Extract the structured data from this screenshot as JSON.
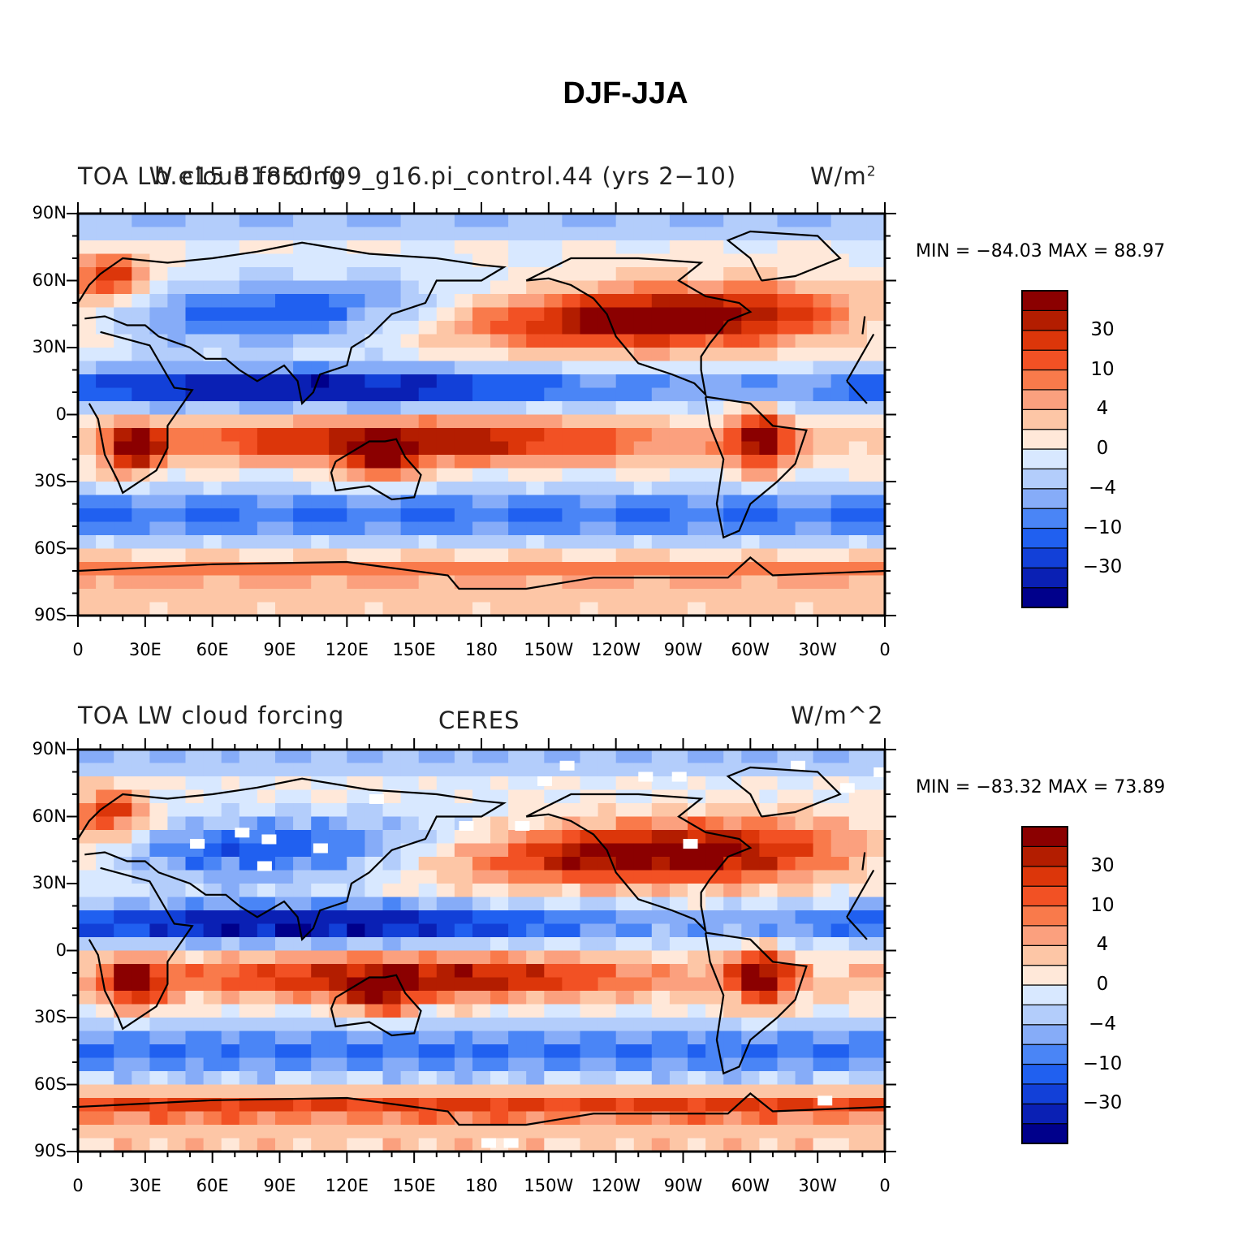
{
  "title": "DJF-JJA",
  "colors": [
    "#00008b",
    "#0a20b4",
    "#1240d8",
    "#2060f0",
    "#4a85f6",
    "#86acf8",
    "#b3cdfb",
    "#d8e8ff",
    "#ffe8d9",
    "#fdc6a6",
    "#fba07e",
    "#f97a4b",
    "#f25124",
    "#dc360a",
    "#b31d00",
    "#8b0000"
  ],
  "colorbar": {
    "labels": [
      "30",
      "10",
      "4",
      "0",
      "−4",
      "−10",
      "−30"
    ]
  },
  "axes": {
    "lat_labels": [
      "90N",
      "60N",
      "30N",
      "0",
      "30S",
      "60S",
      "90S"
    ],
    "lon_labels": [
      "0",
      "30E",
      "60E",
      "90E",
      "120E",
      "150E",
      "180",
      "150W",
      "120W",
      "90W",
      "60W",
      "30W",
      "0"
    ]
  },
  "panels": [
    {
      "left_label": "TOA LW cloud forcing",
      "center_label": "b.e15.B1850.f09_g16.pi_control.44 (yrs 2−10)",
      "right_label": "W/m",
      "right_label_sup": "2",
      "minmax": "MIN = −84.03  MAX =   88.97",
      "variant": "model"
    },
    {
      "left_label": "TOA LW cloud forcing",
      "center_label": "CERES",
      "right_label": "W/m^2",
      "minmax": "MIN = −83.32  MAX =   73.89",
      "variant": "obs"
    }
  ]
}
